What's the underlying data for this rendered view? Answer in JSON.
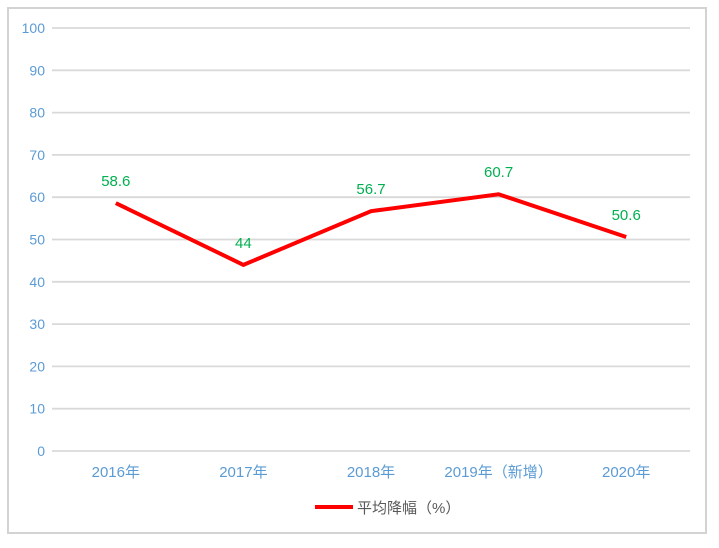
{
  "chart_data": {
    "type": "line",
    "title": "",
    "xlabel": "",
    "ylabel": "",
    "categories": [
      "2016年",
      "2017年",
      "2018年",
      "2019年（新增）",
      "2020年"
    ],
    "series": [
      {
        "name": "平均降幅（%）",
        "values": [
          58.6,
          44,
          56.7,
          60.7,
          50.6
        ],
        "labels": [
          "58.6",
          "44",
          "56.7",
          "60.7",
          "50.6"
        ],
        "color": "#FF0000"
      }
    ],
    "ylim": [
      0,
      100
    ],
    "ytick_step": 10,
    "grid": true,
    "legend_position": "bottom"
  },
  "theme": {
    "line_color": "#FF0000",
    "data_label_color": "#00B050",
    "axis_label_color": "#5B9BD5",
    "gridline_color": "#D9D9D9",
    "frame_border_color": "#D3D3D3",
    "legend_text_color": "#595959",
    "background_color": "#FFFFFF"
  }
}
